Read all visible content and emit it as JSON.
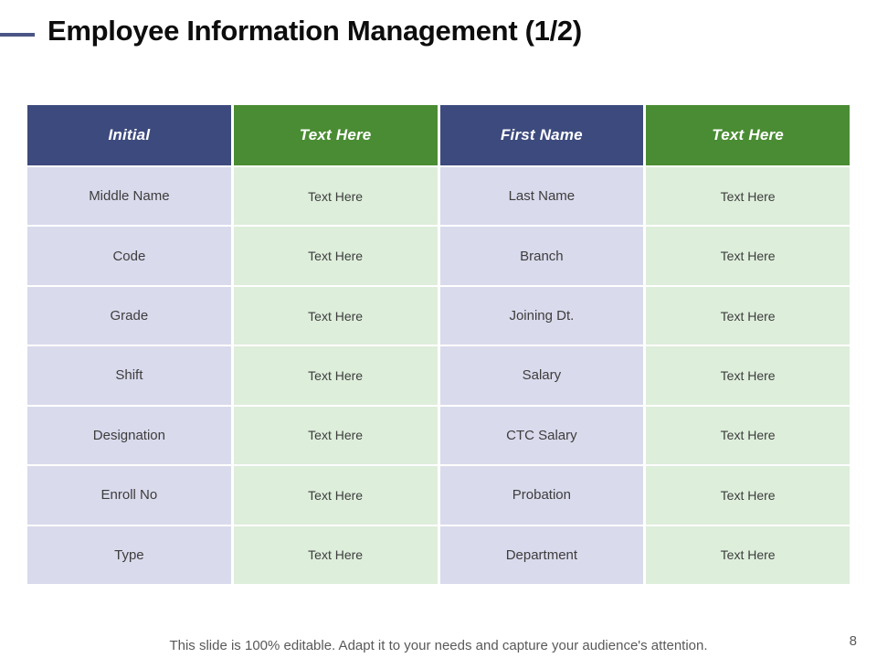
{
  "slide": {
    "title": "Employee Information Management (1/2)",
    "footer_note": "This slide is 100% editable. Adapt it to your needs and capture your audience's attention.",
    "page_number": "8"
  },
  "table": {
    "header": [
      "Initial",
      "Text Here",
      "First Name",
      "Text Here"
    ],
    "rows": [
      [
        "Middle Name",
        "Text Here",
        "Last Name",
        "Text Here"
      ],
      [
        "Code",
        "Text Here",
        "Branch",
        "Text Here"
      ],
      [
        "Grade",
        "Text Here",
        "Joining Dt.",
        "Text Here"
      ],
      [
        "Shift",
        "Text Here",
        "Salary",
        "Text Here"
      ],
      [
        "Designation",
        "Text Here",
        "CTC Salary",
        "Text Here"
      ],
      [
        "Enroll No",
        "Text Here",
        "Probation",
        "Text Here"
      ],
      [
        "Type",
        "Text Here",
        "Department",
        "Text Here"
      ]
    ]
  },
  "colors": {
    "header_navy": "#3D4A7D",
    "header_green": "#4A8C33",
    "cell_lavender": "#D9DAEC",
    "cell_green": "#DDEEDB",
    "accent_dash": "#4A5586",
    "footer_gray": "#595959"
  }
}
